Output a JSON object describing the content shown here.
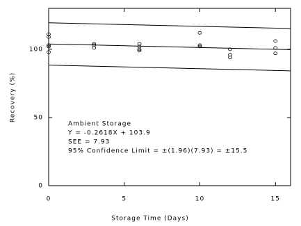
{
  "chart_data": {
    "type": "scatter",
    "xlabel": "Storage Time (Days)",
    "ylabel": "Recovery (%)",
    "annotations": [
      "Ambient Storage",
      "Y = -0.2618X + 103.9",
      "SEE = 7.93",
      "95% Confidence Limit = ±(1.96)(7.93) = ±15.5"
    ],
    "xlim": [
      0,
      16
    ],
    "ylim": [
      0,
      130
    ],
    "xticks": [
      0,
      5,
      10,
      15
    ],
    "yticks": [
      0,
      50,
      100
    ],
    "color": "#000000",
    "points": {
      "x": [
        0,
        0,
        0,
        0,
        0,
        3,
        3,
        3,
        6,
        6,
        6,
        6,
        10,
        10,
        10,
        12,
        12,
        12,
        15,
        15,
        15
      ],
      "y": [
        111,
        109,
        103,
        102,
        98,
        104,
        103,
        101,
        104,
        102,
        100,
        99,
        112,
        103,
        102,
        100,
        96,
        94,
        106,
        101,
        97
      ]
    },
    "lines": [
      {
        "x": [
          0,
          16
        ],
        "y": [
          119.4,
          115.2
        ]
      },
      {
        "x": [
          0,
          16
        ],
        "y": [
          103.9,
          99.7
        ]
      },
      {
        "x": [
          0,
          16
        ],
        "y": [
          88.4,
          84.2
        ]
      }
    ]
  }
}
